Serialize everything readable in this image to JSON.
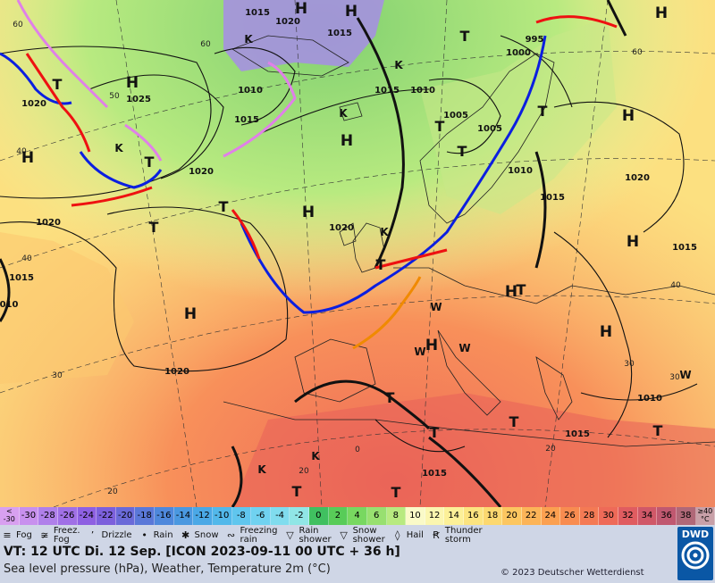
{
  "map": {
    "pressure_labels": [
      {
        "text": "1015"
      },
      {
        "text": "1020"
      },
      {
        "text": "1020"
      },
      {
        "text": "1010"
      },
      {
        "text": "1015"
      },
      {
        "text": "1025"
      },
      {
        "text": "1020"
      },
      {
        "text": "1020"
      },
      {
        "text": "1020"
      },
      {
        "text": "1015"
      },
      {
        "text": "1010"
      },
      {
        "text": "1015"
      },
      {
        "text": "1005"
      },
      {
        "text": "1005"
      },
      {
        "text": "995"
      },
      {
        "text": "1000"
      },
      {
        "text": "1010"
      },
      {
        "text": "1015"
      },
      {
        "text": "1020"
      },
      {
        "text": "1015"
      },
      {
        "text": "1020"
      },
      {
        "text": "1010"
      },
      {
        "text": "1015"
      },
      {
        "text": "1015"
      },
      {
        "text": "1015"
      },
      {
        "text": "010"
      }
    ],
    "lat_labels": [
      {
        "text": "60"
      },
      {
        "text": "50"
      },
      {
        "text": "60"
      },
      {
        "text": "40"
      },
      {
        "text": "40"
      },
      {
        "text": "30"
      },
      {
        "text": "20"
      },
      {
        "text": "20"
      },
      {
        "text": "0"
      },
      {
        "text": "40"
      },
      {
        "text": "30"
      },
      {
        "text": "20"
      },
      {
        "text": "30"
      },
      {
        "text": "60"
      }
    ],
    "high_markers": [
      {
        "text": "H"
      },
      {
        "text": "H"
      },
      {
        "text": "H"
      },
      {
        "text": "H"
      },
      {
        "text": "H"
      },
      {
        "text": "H"
      },
      {
        "text": "H"
      },
      {
        "text": "H"
      },
      {
        "text": "H"
      },
      {
        "text": "H"
      },
      {
        "text": "H"
      },
      {
        "text": "H"
      },
      {
        "text": "H"
      }
    ],
    "low_markers": [
      {
        "text": "T"
      },
      {
        "text": "T"
      },
      {
        "text": "T"
      },
      {
        "text": "T"
      },
      {
        "text": "T"
      },
      {
        "text": "T"
      },
      {
        "text": "T"
      },
      {
        "text": "T"
      },
      {
        "text": "T"
      },
      {
        "text": "T"
      },
      {
        "text": "T"
      },
      {
        "text": "T"
      },
      {
        "text": "T"
      },
      {
        "text": "T"
      },
      {
        "text": "T"
      },
      {
        "text": "T"
      }
    ],
    "cold_markers": [
      {
        "text": "K"
      },
      {
        "text": "K"
      },
      {
        "text": "K"
      },
      {
        "text": "K"
      },
      {
        "text": "K"
      },
      {
        "text": "K"
      },
      {
        "text": "K"
      }
    ],
    "warm_markers": [
      {
        "text": "W"
      },
      {
        "text": "W"
      },
      {
        "text": "W"
      },
      {
        "text": "W"
      }
    ],
    "colors": {
      "cold_front": "#0b1fe0",
      "warm_front": "#ee1111",
      "occlusion": "#e080e8",
      "convergence": "#f08a00",
      "isobar": "#111111"
    }
  },
  "legend": {
    "scale": [
      {
        "label": "<\n-30",
        "color": "#d8a0f0"
      },
      {
        "label": "-30",
        "color": "#c890ee"
      },
      {
        "label": "-28",
        "color": "#b080ea"
      },
      {
        "label": "-26",
        "color": "#a070e6"
      },
      {
        "label": "-24",
        "color": "#8e60e2"
      },
      {
        "label": "-22",
        "color": "#7c60dc"
      },
      {
        "label": "-20",
        "color": "#6a6ad8"
      },
      {
        "label": "-18",
        "color": "#5a78d8"
      },
      {
        "label": "-16",
        "color": "#4e88dc"
      },
      {
        "label": "-14",
        "color": "#4a98e0"
      },
      {
        "label": "-12",
        "color": "#4aa8e6"
      },
      {
        "label": "-10",
        "color": "#52b8ea"
      },
      {
        "label": "-8",
        "color": "#60c6ee"
      },
      {
        "label": "-6",
        "color": "#70d2f0"
      },
      {
        "label": "-4",
        "color": "#80dcee"
      },
      {
        "label": "-2",
        "color": "#90e6e6"
      },
      {
        "label": "0",
        "color": "#40c060"
      },
      {
        "label": "2",
        "color": "#58cc58"
      },
      {
        "label": "4",
        "color": "#78d860"
      },
      {
        "label": "6",
        "color": "#98e070"
      },
      {
        "label": "8",
        "color": "#b8ea80"
      },
      {
        "label": "10",
        "color": "#fafac8"
      },
      {
        "label": "12",
        "color": "#fbf6b0"
      },
      {
        "label": "14",
        "color": "#fcf098"
      },
      {
        "label": "16",
        "color": "#fce480"
      },
      {
        "label": "18",
        "color": "#fcd870"
      },
      {
        "label": "20",
        "color": "#fcc660"
      },
      {
        "label": "22",
        "color": "#fcb458"
      },
      {
        "label": "24",
        "color": "#fba050"
      },
      {
        "label": "26",
        "color": "#f88c50"
      },
      {
        "label": "28",
        "color": "#f47a54"
      },
      {
        "label": "30",
        "color": "#ee6a58"
      },
      {
        "label": "32",
        "color": "#e05c60"
      },
      {
        "label": "34",
        "color": "#d05868"
      },
      {
        "label": "36",
        "color": "#c05870"
      },
      {
        "label": "38",
        "color": "#b06878"
      },
      {
        "label": "≥40\n°C",
        "color": "#c8a0a8"
      }
    ],
    "weather": [
      {
        "symbol": "fog-icon",
        "glyph": "≡",
        "label": "Fog"
      },
      {
        "symbol": "freezing-fog-icon",
        "glyph": "≆",
        "label": "Freez.\nFog"
      },
      {
        "symbol": "drizzle-icon",
        "glyph": "ʼ",
        "label": "Drizzle"
      },
      {
        "symbol": "rain-icon",
        "glyph": "•",
        "label": "Rain"
      },
      {
        "symbol": "snow-icon",
        "glyph": "✱",
        "label": "Snow"
      },
      {
        "symbol": "freezing-rain-icon",
        "glyph": "∾",
        "label": "Freezing\nrain"
      },
      {
        "symbol": "rain-shower-icon",
        "glyph": "▽",
        "label": "Rain\nshower"
      },
      {
        "symbol": "snow-shower-icon",
        "glyph": "▽",
        "label": "Snow\nshower"
      },
      {
        "symbol": "hail-icon",
        "glyph": "◊",
        "label": "Hail"
      },
      {
        "symbol": "thunderstorm-icon",
        "glyph": "Ꞧ",
        "label": "Thunder\nstorm"
      }
    ],
    "valid_time": "VT: 12 UTC Di.  12 Sep. [ICON 2023-09-11  00 UTC + 36 h]",
    "description": "Sea level pressure (hPa), Weather, Temperature 2m (°C)",
    "copyright": "© 2023 Deutscher Wetterdienst",
    "logo_text": "DWD"
  }
}
